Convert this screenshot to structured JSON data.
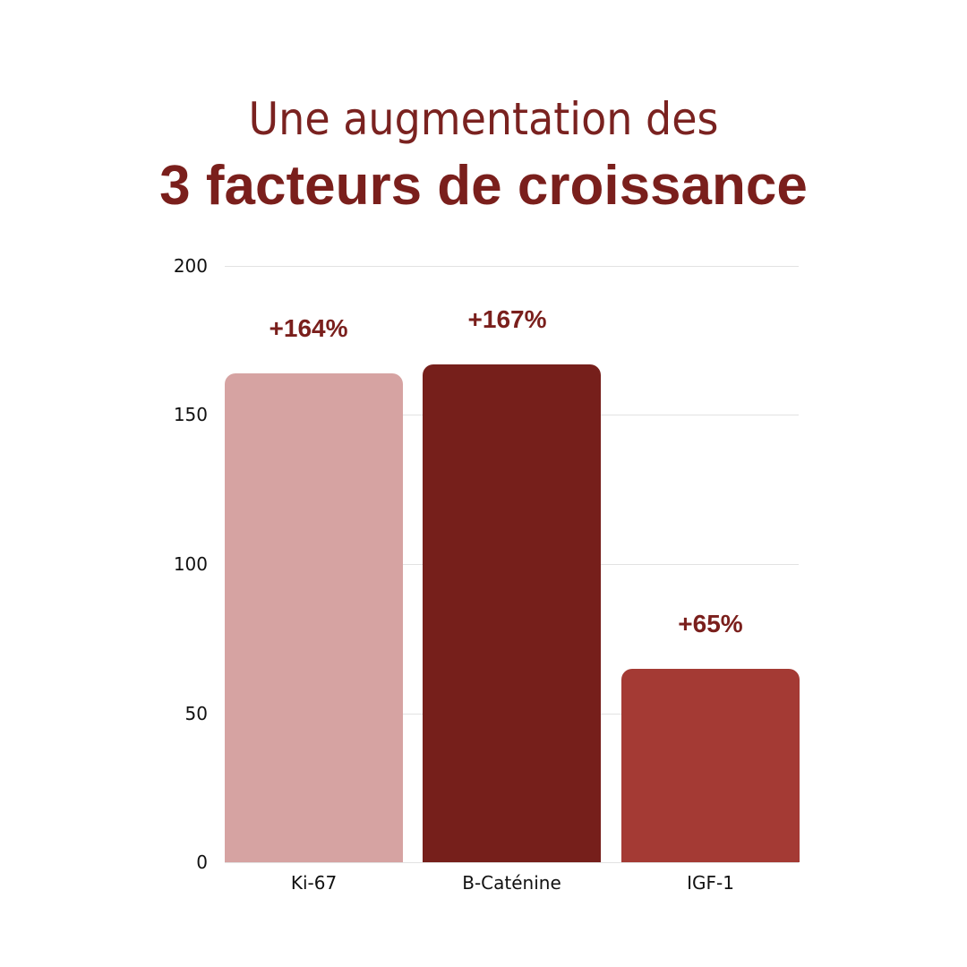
{
  "title": {
    "line1": "Une augmentation des",
    "line2": "3 facteurs de croissance"
  },
  "chart_data": {
    "type": "bar",
    "title": "Une augmentation des 3 facteurs de croissance",
    "categories": [
      "Ki-67",
      "B-Caténine",
      "IGF-1"
    ],
    "values": [
      164,
      167,
      65
    ],
    "data_labels": [
      "+164%",
      "+167%",
      "+65%"
    ],
    "colors": [
      "#d6a3a2",
      "#761f1b",
      "#a43a34"
    ],
    "xlabel": "",
    "ylabel": "",
    "ylim": [
      0,
      200
    ],
    "yticks": [
      "200",
      "150",
      "100",
      "50",
      "0"
    ],
    "grid": true,
    "legend": "none"
  }
}
